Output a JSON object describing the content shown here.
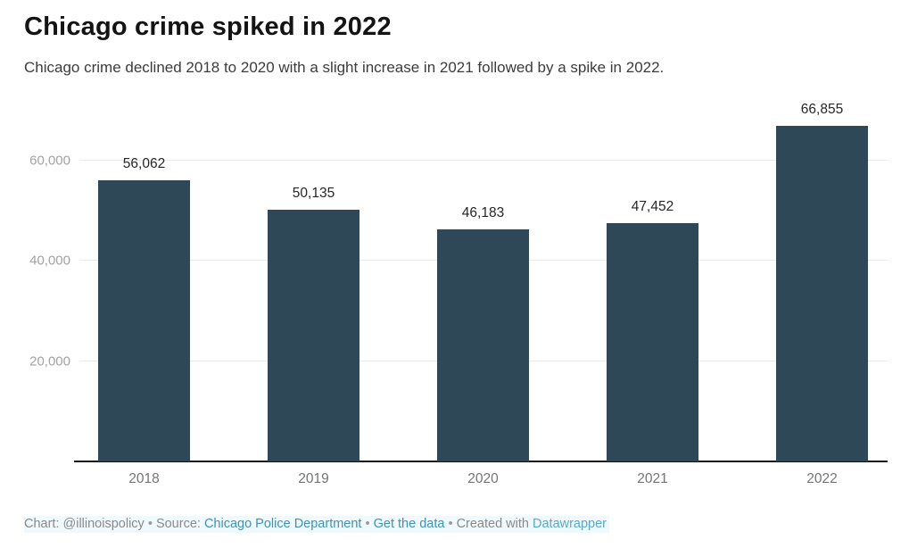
{
  "header": {
    "title": "Chicago crime spiked in 2022",
    "subtitle": "Chicago crime declined 2018 to 2020 with a slight increase in 2021 followed by a spike in 2022."
  },
  "chart_data": {
    "type": "bar",
    "categories": [
      "2018",
      "2019",
      "2020",
      "2021",
      "2022"
    ],
    "values": [
      56062,
      50135,
      46183,
      47452,
      66855
    ],
    "value_labels": [
      "56,062",
      "50,135",
      "46,183",
      "47,452",
      "66,855"
    ],
    "title": "Chicago crime spiked in 2022",
    "xlabel": "",
    "ylabel": "",
    "ylim": [
      0,
      68800
    ],
    "yticks": [
      20000,
      40000,
      60000
    ],
    "ytick_labels": [
      "20,000",
      "40,000",
      "60,000"
    ],
    "grid": true,
    "legend": "none",
    "bar_color": "#2f4858"
  },
  "footer": {
    "chart_credit": "Chart: @illinoispolicy",
    "separator": "•",
    "source_label": "Source:",
    "source_link": "Chicago Police Department",
    "get_data_link": "Get the data",
    "created_with": "Created with",
    "tool_link": "Datawrapper"
  },
  "colors": {
    "bar": "#2f4858",
    "link_blue": "#3e93b4",
    "tool_link_blue": "#56abcb",
    "gridline": "#e9e9e9",
    "axis": "#151515"
  }
}
